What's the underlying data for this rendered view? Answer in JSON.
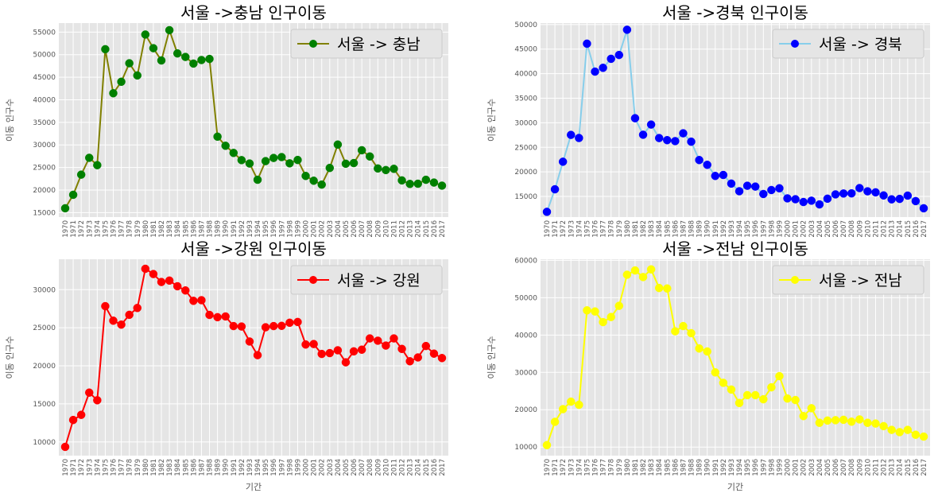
{
  "chart_data": [
    {
      "type": "line",
      "title": "서울 ->충남 인구이동",
      "xlabel": "",
      "ylabel": "이동 인구수",
      "ylim": [
        14000,
        57000
      ],
      "yticks": [
        15000,
        20000,
        25000,
        30000,
        35000,
        40000,
        45000,
        50000,
        55000
      ],
      "grid": true,
      "legend": "top-right",
      "series": [
        {
          "name": "서울 -> 충남",
          "line_color": "#808000",
          "marker_color": "#008000",
          "values": [
            15954,
            18943,
            23406,
            27139,
            25509,
            51205,
            41447,
            43993,
            48091,
            45388,
            54458,
            51428,
            48708,
            55424,
            50271,
            49493,
            48020,
            48806,
            49048,
            31826,
            29807,
            28225,
            26628,
            25880,
            22274,
            26406,
            27103,
            27296,
            25918,
            26660,
            23123,
            22064,
            21202,
            24894,
            30072,
            25827,
            25975,
            28812,
            27434,
            24778,
            24427,
            24701,
            22130,
            21350,
            21394,
            22268,
            21654,
            20969
          ]
        }
      ]
    },
    {
      "type": "line",
      "title": "서울 ->경북 인구이동",
      "xlabel": "",
      "ylabel": "이동 인구수",
      "ylim": [
        10800,
        50300
      ],
      "yticks": [
        15000,
        20000,
        25000,
        30000,
        35000,
        40000,
        45000,
        50000
      ],
      "grid": true,
      "legend": "top-right",
      "series": [
        {
          "name": "서울 -> 경북",
          "line_color": "#87ceeb",
          "marker_color": "#0000ff",
          "values": [
            11868,
            16459,
            22073,
            27531,
            26902,
            46105,
            40413,
            41188,
            43024,
            43800,
            48940,
            30929,
            27564,
            29636,
            26888,
            26464,
            26268,
            27860,
            26153,
            22415,
            21440,
            19180,
            19374,
            17620,
            16062,
            17180,
            17009,
            15500,
            16308,
            16663,
            14612,
            14435,
            13870,
            14139,
            13379,
            14549,
            15422,
            15603,
            15631,
            16706,
            16047,
            15838,
            15209,
            14413,
            14505,
            15174,
            14054,
            12592
          ]
        }
      ]
    },
    {
      "type": "line",
      "title": "서울 ->강원 인구이동",
      "xlabel": "기간",
      "ylabel": "이동 인구수",
      "ylim": [
        8200,
        34000
      ],
      "yticks": [
        10000,
        15000,
        20000,
        25000,
        30000
      ],
      "grid": true,
      "legend": "top-right",
      "series": [
        {
          "name": "서울 -> 강원",
          "line_color": "#ff0000",
          "marker_color": "#ff0000",
          "values": [
            9352,
            12885,
            13561,
            16481,
            15479,
            27837,
            25927,
            25415,
            26700,
            27599,
            32745,
            32054,
            31010,
            31196,
            30451,
            29901,
            28537,
            28619,
            26686,
            26388,
            26485,
            25220,
            25162,
            23193,
            21398,
            25063,
            25220,
            25250,
            25660,
            25760,
            22800,
            22860,
            21560,
            21670,
            22040,
            20460,
            21900,
            22120,
            23600,
            23300,
            22660,
            23600,
            22220,
            20600,
            21100,
            22600,
            21600,
            21020
          ]
        }
      ]
    },
    {
      "type": "line",
      "title": "서울 ->전남 인구이동",
      "xlabel": "기간",
      "ylabel": "이동 인구수",
      "ylim": [
        7700,
        60300
      ],
      "yticks": [
        10000,
        20000,
        30000,
        40000,
        50000,
        60000
      ],
      "grid": true,
      "legend": "top-right",
      "series": [
        {
          "name": "서울 -> 전남",
          "line_color": "#ffff00",
          "marker_color": "#ffff00",
          "values": [
            10513,
            16755,
            20157,
            22160,
            21314,
            46610,
            46315,
            43463,
            44828,
            47819,
            56155,
            57300,
            55530,
            57582,
            52600,
            52470,
            41000,
            42400,
            40500,
            36400,
            35600,
            30000,
            27200,
            25400,
            21800,
            23900,
            23900,
            22800,
            26000,
            29000,
            23000,
            22600,
            18300,
            20400,
            16500,
            17100,
            17200,
            17300,
            16800,
            17400,
            16500,
            16300,
            15600,
            14600,
            14000,
            14600,
            13300,
            12800
          ]
        }
      ]
    }
  ]
}
